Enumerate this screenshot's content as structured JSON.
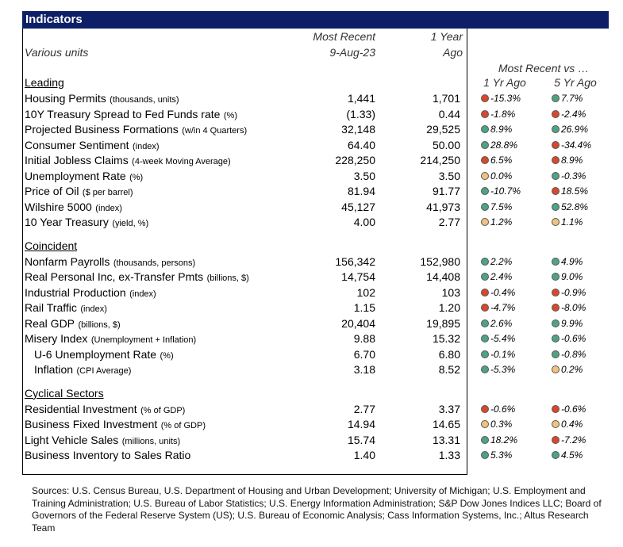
{
  "header": {
    "title": "Indicators"
  },
  "columns": {
    "units": "Various units",
    "recent": [
      "Most Recent",
      "9-Aug-23"
    ],
    "year_ago": [
      "1 Year",
      "Ago"
    ],
    "compare_title": "Most Recent vs …",
    "compare": [
      "1 Yr Ago",
      "5 Yr Ago"
    ]
  },
  "sections": [
    {
      "title": "Leading",
      "rows": [
        {
          "name": "Housing Permits",
          "unit": "(thousands, units)",
          "recent": "1,441",
          "year_ago": "1,701",
          "vs_1yr": {
            "text": "-15.3%",
            "color": "#d9482b"
          },
          "vs_5yr": {
            "text": "7.7%",
            "color": "#4fa383"
          }
        },
        {
          "name": "10Y Treasury Spread to Fed Funds rate",
          "unit": "(%)",
          "recent": "(1.33)",
          "year_ago": "0.44",
          "vs_1yr": {
            "text": "-1.8%",
            "color": "#d9482b"
          },
          "vs_5yr": {
            "text": "-2.4%",
            "color": "#d9482b"
          }
        },
        {
          "name": "Projected Business Formations",
          "unit": "(w/in 4 Quarters)",
          "recent": "32,148",
          "year_ago": "29,525",
          "vs_1yr": {
            "text": "8.9%",
            "color": "#4fa383"
          },
          "vs_5yr": {
            "text": "26.9%",
            "color": "#4fa383"
          }
        },
        {
          "name": "Consumer Sentiment",
          "unit": "(index)",
          "recent": "64.40",
          "year_ago": "50.00",
          "vs_1yr": {
            "text": "28.8%",
            "color": "#4fa383"
          },
          "vs_5yr": {
            "text": "-34.4%",
            "color": "#d9482b"
          }
        },
        {
          "name": "Initial Jobless Claims",
          "unit": "(4-week Moving Average)",
          "recent": "228,250",
          "year_ago": "214,250",
          "vs_1yr": {
            "text": "6.5%",
            "color": "#d9482b"
          },
          "vs_5yr": {
            "text": "8.9%",
            "color": "#d9482b"
          }
        },
        {
          "name": "Unemployment Rate",
          "unit": "(%)",
          "recent": "3.50",
          "year_ago": "3.50",
          "vs_1yr": {
            "text": "0.0%",
            "color": "#f0c27b"
          },
          "vs_5yr": {
            "text": "-0.3%",
            "color": "#4fa383"
          }
        },
        {
          "name": "Price of Oil",
          "unit": "($ per barrel)",
          "recent": "81.94",
          "year_ago": "91.77",
          "vs_1yr": {
            "text": "-10.7%",
            "color": "#4fa383"
          },
          "vs_5yr": {
            "text": "18.5%",
            "color": "#d9482b"
          }
        },
        {
          "name": "Wilshire 5000",
          "unit": "(index)",
          "recent": "45,127",
          "year_ago": "41,973",
          "vs_1yr": {
            "text": "7.5%",
            "color": "#4fa383"
          },
          "vs_5yr": {
            "text": "52.8%",
            "color": "#4fa383"
          }
        },
        {
          "name": "10 Year Treasury",
          "unit": "(yield, %)",
          "recent": "4.00",
          "year_ago": "2.77",
          "vs_1yr": {
            "text": "1.2%",
            "color": "#f0c27b"
          },
          "vs_5yr": {
            "text": "1.1%",
            "color": "#f0c27b"
          }
        }
      ]
    },
    {
      "title": "Coincident",
      "rows": [
        {
          "name": "Nonfarm Payrolls",
          "unit": "(thousands, persons)",
          "recent": "156,342",
          "year_ago": "152,980",
          "vs_1yr": {
            "text": "2.2%",
            "color": "#4fa383"
          },
          "vs_5yr": {
            "text": "4.9%",
            "color": "#4fa383"
          }
        },
        {
          "name": "Real Personal Inc, ex-Transfer Pmts",
          "unit": "(billions, $)",
          "recent": "14,754",
          "year_ago": "14,408",
          "vs_1yr": {
            "text": "2.4%",
            "color": "#4fa383"
          },
          "vs_5yr": {
            "text": "9.0%",
            "color": "#4fa383"
          }
        },
        {
          "name": "Industrial Production",
          "unit": "(index)",
          "recent": "102",
          "year_ago": "103",
          "vs_1yr": {
            "text": "-0.4%",
            "color": "#d9482b"
          },
          "vs_5yr": {
            "text": "-0.9%",
            "color": "#d9482b"
          }
        },
        {
          "name": "Rail Traffic",
          "unit": "(index)",
          "recent": "1.15",
          "year_ago": "1.20",
          "vs_1yr": {
            "text": "-4.7%",
            "color": "#d9482b"
          },
          "vs_5yr": {
            "text": "-8.0%",
            "color": "#d9482b"
          }
        },
        {
          "name": "Real GDP",
          "unit": "(billions, $)",
          "recent": "20,404",
          "year_ago": "19,895",
          "vs_1yr": {
            "text": "2.6%",
            "color": "#4fa383"
          },
          "vs_5yr": {
            "text": "9.9%",
            "color": "#4fa383"
          }
        },
        {
          "name": "Misery Index",
          "unit": "(Unemployment + Inflation)",
          "recent": "9.88",
          "year_ago": "15.32",
          "vs_1yr": {
            "text": "-5.4%",
            "color": "#4fa383"
          },
          "vs_5yr": {
            "text": "-0.6%",
            "color": "#4fa383"
          }
        },
        {
          "name": "U-6 Unemployment Rate",
          "unit": "(%)",
          "indent": true,
          "recent": "6.70",
          "year_ago": "6.80",
          "vs_1yr": {
            "text": "-0.1%",
            "color": "#4fa383"
          },
          "vs_5yr": {
            "text": "-0.8%",
            "color": "#4fa383"
          }
        },
        {
          "name": "Inflation",
          "unit": "(CPI Average)",
          "indent": true,
          "recent": "3.18",
          "year_ago": "8.52",
          "vs_1yr": {
            "text": "-5.3%",
            "color": "#4fa383"
          },
          "vs_5yr": {
            "text": "0.2%",
            "color": "#f0c27b"
          }
        }
      ]
    },
    {
      "title": "Cyclical Sectors",
      "rows": [
        {
          "name": "Residential Investment",
          "unit": "(% of GDP)",
          "recent": "2.77",
          "year_ago": "3.37",
          "vs_1yr": {
            "text": "-0.6%",
            "color": "#d9482b"
          },
          "vs_5yr": {
            "text": "-0.6%",
            "color": "#d9482b"
          }
        },
        {
          "name": "Business Fixed Investment",
          "unit": "(% of GDP)",
          "recent": "14.94",
          "year_ago": "14.65",
          "vs_1yr": {
            "text": "0.3%",
            "color": "#f0c27b"
          },
          "vs_5yr": {
            "text": "0.4%",
            "color": "#f0c27b"
          }
        },
        {
          "name": "Light Vehicle Sales",
          "unit": "(millions, units)",
          "recent": "15.74",
          "year_ago": "13.31",
          "vs_1yr": {
            "text": "18.2%",
            "color": "#4fa383"
          },
          "vs_5yr": {
            "text": "-7.2%",
            "color": "#d9482b"
          }
        },
        {
          "name": "Business Inventory to Sales Ratio",
          "recent": "1.40",
          "year_ago": "1.33",
          "vs_1yr": {
            "text": "5.3%",
            "color": "#4fa383"
          },
          "vs_5yr": {
            "text": "4.5%",
            "color": "#4fa383"
          }
        }
      ]
    }
  ],
  "sources": "Sources: U.S. Census Bureau, U.S. Department of Housing and Urban Development; University of Michigan; U.S. Employment and Training Administration; U.S. Bureau of Labor Statistics; U.S. Energy Information Administration; S&P Dow Jones Indices LLC; Board of Governors of the Federal Reserve System (US); U.S. Bureau of Economic Analysis; Cass Information Systems, Inc.; Altus Research Team"
}
